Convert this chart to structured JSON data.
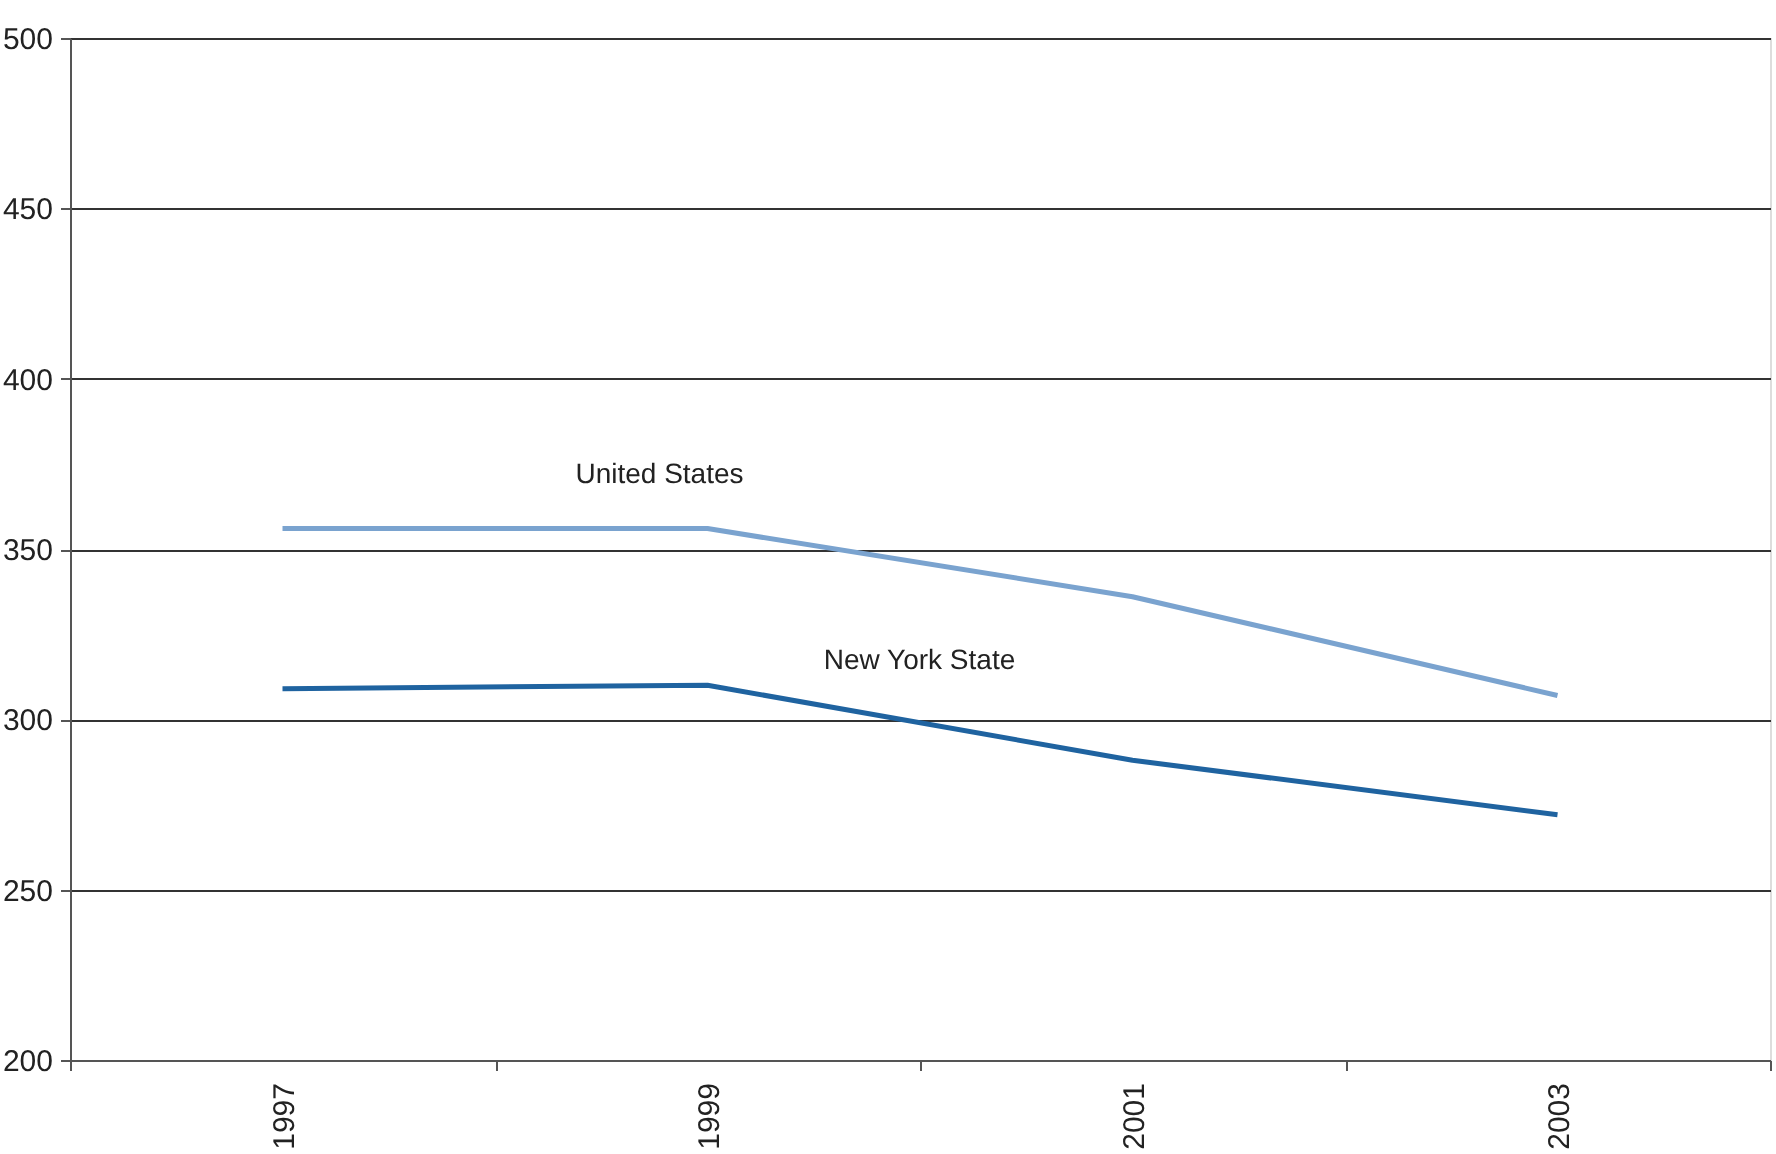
{
  "chart_data": {
    "type": "line",
    "categories": [
      "1997",
      "1999",
      "2001",
      "2003"
    ],
    "series": [
      {
        "name": "United States",
        "color": "#7aa3cf",
        "values": [
          356,
          356,
          336,
          307
        ]
      },
      {
        "name": "New York State",
        "color": "#1f63a0",
        "values": [
          309,
          310,
          288,
          272
        ]
      }
    ],
    "ylim": [
      200,
      500
    ],
    "yticks": [
      200,
      250,
      300,
      350,
      400,
      450,
      500
    ],
    "grid": "y",
    "legend": false,
    "marker": "none",
    "line_style": "solid"
  }
}
